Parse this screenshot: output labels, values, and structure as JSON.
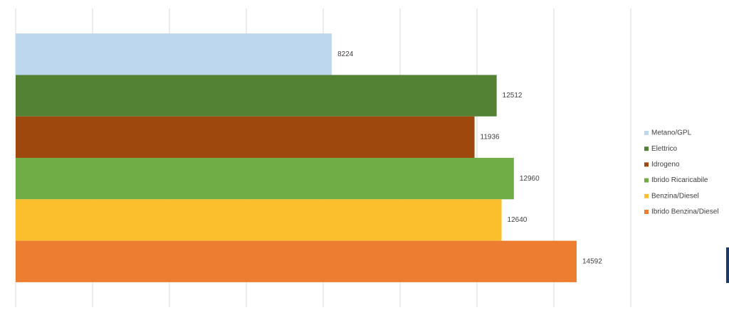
{
  "chart_data": {
    "type": "bar",
    "orientation": "horizontal",
    "categories": [
      null
    ],
    "series": [
      {
        "name": "Metano/GPL",
        "color": "#bdd7ee",
        "values": [
          8224
        ]
      },
      {
        "name": "Elettrico",
        "color": "#548235",
        "values": [
          12512
        ]
      },
      {
        "name": "Idrogeno",
        "color": "#9e480e",
        "values": [
          11936
        ]
      },
      {
        "name": "Ibrido Ricaricabile",
        "color": "#70ad47",
        "values": [
          12960
        ]
      },
      {
        "name": "Benzina/Diesel",
        "color": "#fbbf2d",
        "values": [
          12640
        ]
      },
      {
        "name": "Ibrido Benzina/Diesel",
        "color": "#ed7d31",
        "values": [
          14592
        ]
      }
    ],
    "xlim": [
      0,
      16000
    ],
    "xticks": [
      0,
      2000,
      4000,
      6000,
      8000,
      10000,
      12000,
      14000,
      16000
    ],
    "grid": true,
    "legend": "right"
  }
}
